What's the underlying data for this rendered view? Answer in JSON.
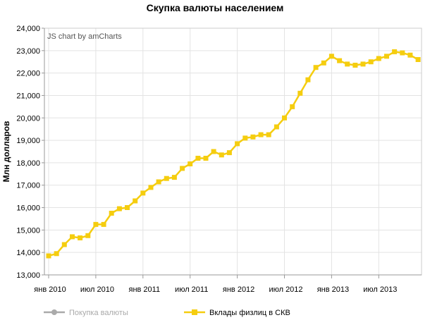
{
  "chart_data": {
    "type": "line",
    "title": "Скупка валюты населением",
    "ylabel": "Млн долларов",
    "xlabel": "",
    "credits": "JS chart by amCharts",
    "ylim": [
      13000,
      24000
    ],
    "y_ticks": [
      "13,000",
      "14,000",
      "15,000",
      "16,000",
      "17,000",
      "18,000",
      "19,000",
      "20,000",
      "21,000",
      "22,000",
      "23,000",
      "24,000"
    ],
    "x_ticks": [
      "янв 2010",
      "июл 2010",
      "янв 2011",
      "июл 2011",
      "янв 2012",
      "июл 2012",
      "янв 2013",
      "июл 2013"
    ],
    "grid": true,
    "legend_position": "bottom",
    "series": [
      {
        "name": "Покупка валюты",
        "color": "#aaaaaa",
        "visible": false,
        "values": []
      },
      {
        "name": "Вклады физлиц в СКВ",
        "color": "#f5cd0f",
        "visible": true,
        "x": [
          "2010-01",
          "2010-02",
          "2010-03",
          "2010-04",
          "2010-05",
          "2010-06",
          "2010-07",
          "2010-08",
          "2010-09",
          "2010-10",
          "2010-11",
          "2010-12",
          "2011-01",
          "2011-02",
          "2011-03",
          "2011-04",
          "2011-05",
          "2011-06",
          "2011-07",
          "2011-08",
          "2011-09",
          "2011-10",
          "2011-11",
          "2011-12",
          "2012-01",
          "2012-02",
          "2012-03",
          "2012-04",
          "2012-05",
          "2012-06",
          "2012-07",
          "2012-08",
          "2012-09",
          "2012-10",
          "2012-11",
          "2012-12",
          "2013-01",
          "2013-02",
          "2013-03",
          "2013-04",
          "2013-05",
          "2013-06",
          "2013-07",
          "2013-08",
          "2013-09",
          "2013-10",
          "2013-11",
          "2013-12"
        ],
        "values": [
          13850,
          13950,
          14350,
          14700,
          14650,
          14750,
          15250,
          15250,
          15750,
          15950,
          16000,
          16300,
          16650,
          16900,
          17150,
          17300,
          17350,
          17750,
          17950,
          18200,
          18200,
          18500,
          18350,
          18450,
          18850,
          19100,
          19150,
          19250,
          19250,
          19600,
          20000,
          20500,
          21100,
          21700,
          22250,
          22450,
          22750,
          22550,
          22400,
          22350,
          22400,
          22500,
          22650,
          22750,
          22950,
          22900,
          22800,
          22600
        ]
      }
    ]
  }
}
